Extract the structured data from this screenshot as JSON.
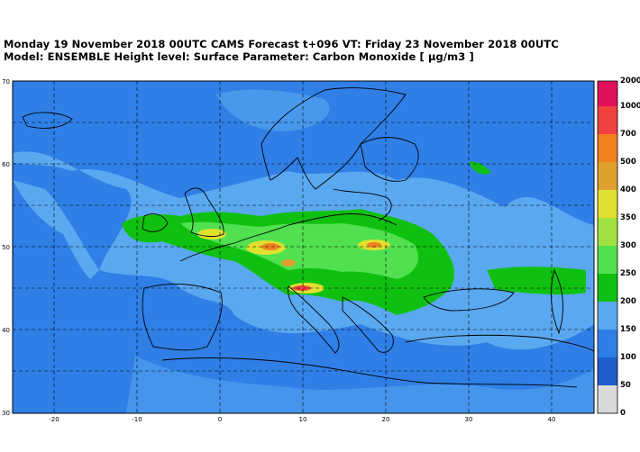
{
  "header": {
    "title_line1": "Monday 19 November 2018 00UTC CAMS Forecast t+096 VT: Friday 23 November 2018 00UTC",
    "title_line2": "Model: ENSEMBLE  Height level: Surface  Parameter: Carbon Monoxide [ µg/m3 ]"
  },
  "map": {
    "lon_range": [
      -25,
      45
    ],
    "lat_range": [
      30,
      70
    ],
    "lon_ticks": [
      "-20",
      "-10",
      "0",
      "10",
      "20",
      "30",
      "40"
    ],
    "lat_ticks": [
      "30",
      "40",
      "50",
      "60",
      "70"
    ],
    "ocean_base_color": "#2f7fe6",
    "land_base_color": "#2f7fe6",
    "coastline_color": "#000000",
    "gridline_style": "dashed"
  },
  "colorbar": {
    "levels": [
      "0",
      "50",
      "100",
      "150",
      "200",
      "250",
      "300",
      "350",
      "400",
      "500",
      "700",
      "1000",
      "2000"
    ],
    "colors": [
      "#d9d9d9",
      "#1f5fcc",
      "#2f7fe6",
      "#5aa8f0",
      "#10c010",
      "#50e050",
      "#a0e040",
      "#e0e030",
      "#e0a030",
      "#f08020",
      "#f04040",
      "#e0105a",
      "#e01080"
    ]
  }
}
